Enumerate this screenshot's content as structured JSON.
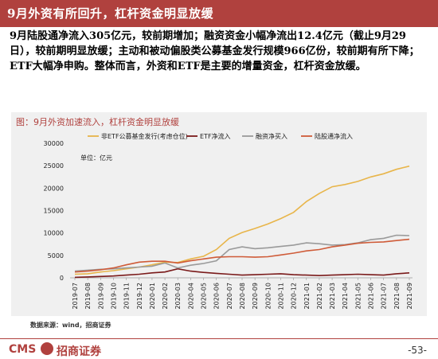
{
  "slide": {
    "title": "9月外资有所回升，杠杆资金明显放缓",
    "body": "9月陆股通净流入305亿元，较前期增加；融资资金小幅净流出12.4亿元（截止9月29日），较前期明显放缓；主动和被动偏股类公募基金发行规模966亿份，较前期有所下降；ETF大幅净申购。整体而言，外资和ETF是主要的增量资金，杠杆资金放缓。",
    "source": "数据来源：wind，招商证券",
    "logo_text": "CMS",
    "logo_cn": "招商证券",
    "page_number": "-53-"
  },
  "chart_data": {
    "type": "line",
    "title": "图：9月外资加速流入，杠杆资金明显放缓",
    "unit_label": "单位：亿元",
    "ylim": [
      0,
      30000
    ],
    "yticks": [
      0,
      5000,
      10000,
      15000,
      20000,
      25000,
      30000
    ],
    "categories": [
      "2019-07",
      "2019-08",
      "2019-09",
      "2019-10",
      "2019-11",
      "2019-12",
      "2020-01",
      "2020-02",
      "2020-03",
      "2020-04",
      "2020-05",
      "2020-06",
      "2020-07",
      "2020-08",
      "2020-09",
      "2020-10",
      "2020-11",
      "2020-12",
      "2021-01",
      "2021-02",
      "2021-03",
      "2021-04",
      "2021-05",
      "2021-06",
      "2021-07",
      "2021-08",
      "2021-09"
    ],
    "legend_position": "top",
    "series": [
      {
        "name": "非ETF公募基金发行(考虑仓位)",
        "color": "#e8b54a",
        "values": [
          800,
          900,
          1300,
          1600,
          2000,
          2400,
          2900,
          3500,
          3400,
          4200,
          4800,
          6300,
          8800,
          10100,
          11000,
          12000,
          13200,
          14600,
          17000,
          18800,
          20300,
          20800,
          21500,
          22500,
          23200,
          24200,
          24900
        ]
      },
      {
        "name": "ETF净流入",
        "color": "#7a1a1a",
        "values": [
          100,
          200,
          300,
          400,
          600,
          800,
          1100,
          1300,
          2000,
          1500,
          1200,
          1000,
          800,
          600,
          700,
          800,
          900,
          700,
          600,
          500,
          600,
          700,
          800,
          700,
          600,
          900,
          1100
        ]
      },
      {
        "name": "融资净买入",
        "color": "#9a9a9a",
        "values": [
          1500,
          1700,
          1900,
          2000,
          2200,
          2400,
          2600,
          3300,
          2200,
          2800,
          3200,
          3800,
          6300,
          6900,
          6500,
          6700,
          7000,
          7300,
          7800,
          7600,
          7300,
          7400,
          7800,
          8500,
          8800,
          9500,
          9400
        ]
      },
      {
        "name": "陆股通净流入",
        "color": "#cf5b38",
        "values": [
          1300,
          1500,
          1800,
          2200,
          2900,
          3500,
          3700,
          3700,
          3300,
          3800,
          4200,
          4600,
          4700,
          4700,
          4600,
          4700,
          5100,
          5500,
          6000,
          6300,
          6900,
          7300,
          7700,
          7900,
          8000,
          8300,
          8600
        ]
      }
    ]
  }
}
